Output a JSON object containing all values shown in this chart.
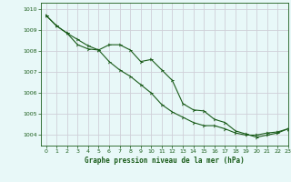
{
  "title": "Graphe pression niveau de la mer (hPa)",
  "background_color": "#e8f8f8",
  "grid_color": "#d0d0d8",
  "line_color": "#1a5c1a",
  "marker_color": "#1a5c1a",
  "xlim": [
    -0.5,
    23
  ],
  "ylim": [
    1003.5,
    1010.3
  ],
  "yticks": [
    1004,
    1005,
    1006,
    1007,
    1008,
    1009,
    1010
  ],
  "xticks": [
    0,
    1,
    2,
    3,
    4,
    5,
    6,
    7,
    8,
    9,
    10,
    11,
    12,
    13,
    14,
    15,
    16,
    17,
    18,
    19,
    20,
    21,
    22,
    23
  ],
  "series1_x": [
    0,
    1,
    2,
    3,
    4,
    5,
    6,
    7,
    8,
    9,
    10,
    11,
    12,
    13,
    14,
    15,
    16,
    17,
    18,
    19,
    20,
    21,
    22,
    23
  ],
  "series1_y": [
    1009.7,
    1009.2,
    1008.85,
    1008.3,
    1008.1,
    1008.05,
    1008.3,
    1008.3,
    1008.05,
    1007.5,
    1007.6,
    1007.1,
    1006.6,
    1005.5,
    1005.2,
    1005.15,
    1004.75,
    1004.6,
    1004.2,
    1004.05,
    1003.9,
    1004.0,
    1004.1,
    1004.3
  ],
  "series2_x": [
    0,
    1,
    2,
    3,
    4,
    5,
    6,
    7,
    8,
    9,
    10,
    11,
    12,
    13,
    14,
    15,
    16,
    17,
    18,
    19,
    20,
    21,
    22,
    23
  ],
  "series2_y": [
    1009.7,
    1009.2,
    1008.85,
    1008.55,
    1008.25,
    1008.05,
    1007.5,
    1007.1,
    1006.8,
    1006.4,
    1006.0,
    1005.45,
    1005.1,
    1004.85,
    1004.6,
    1004.45,
    1004.45,
    1004.3,
    1004.1,
    1004.0,
    1004.0,
    1004.1,
    1004.15,
    1004.3
  ]
}
